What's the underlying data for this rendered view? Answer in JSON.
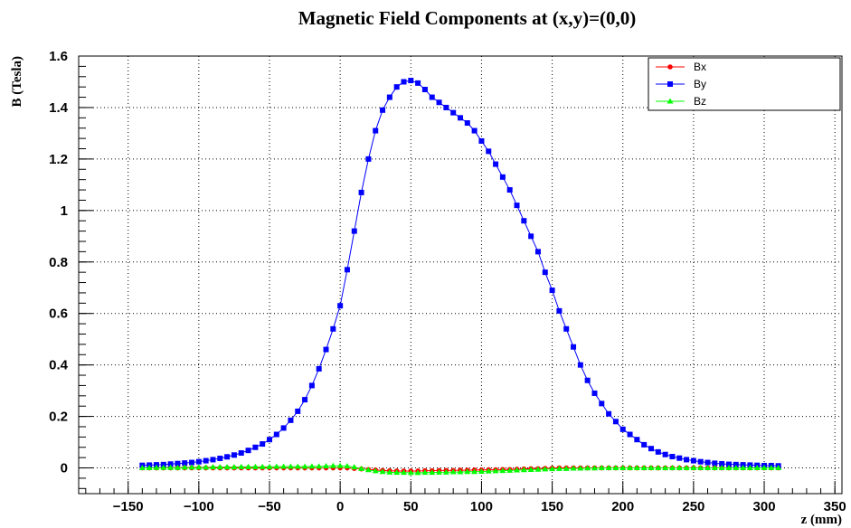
{
  "chart_data": {
    "type": "line",
    "title": "Magnetic Field Components at (x,y)=(0,0)",
    "xlabel": "z (mm)",
    "ylabel": "B (Tesla)",
    "xlim": [
      -185,
      355
    ],
    "ylim": [
      -0.1,
      1.6
    ],
    "x_ticks": [
      -150,
      -100,
      -50,
      0,
      50,
      100,
      150,
      200,
      250,
      300,
      350
    ],
    "x_tick_labels": [
      "−150",
      "−100",
      "−50",
      "0",
      "50",
      "100",
      "150",
      "200",
      "250",
      "300",
      "350"
    ],
    "y_ticks": [
      0,
      0.2,
      0.4,
      0.6,
      0.8,
      1,
      1.2,
      1.4,
      1.6
    ],
    "y_tick_labels": [
      "0",
      "0.2",
      "0.4",
      "0.6",
      "0.8",
      "1",
      "1.2",
      "1.4",
      "1.6"
    ],
    "grid": true,
    "legend_position": "top-right",
    "x": [
      -140,
      -135,
      -130,
      -125,
      -120,
      -115,
      -110,
      -105,
      -100,
      -95,
      -90,
      -85,
      -80,
      -75,
      -70,
      -65,
      -60,
      -55,
      -50,
      -45,
      -40,
      -35,
      -30,
      -25,
      -20,
      -15,
      -10,
      -5,
      0,
      5,
      10,
      15,
      20,
      25,
      30,
      35,
      40,
      45,
      50,
      55,
      60,
      65,
      70,
      75,
      80,
      85,
      90,
      95,
      100,
      105,
      110,
      115,
      120,
      125,
      130,
      135,
      140,
      145,
      150,
      155,
      160,
      165,
      170,
      175,
      180,
      185,
      190,
      195,
      200,
      205,
      210,
      215,
      220,
      225,
      230,
      235,
      240,
      245,
      250,
      255,
      260,
      265,
      270,
      275,
      280,
      285,
      290,
      295,
      300,
      305,
      310
    ],
    "series": [
      {
        "name": "Bx",
        "color": "#ff0000",
        "marker": "circle",
        "values": [
          0,
          0,
          0,
          0,
          0,
          0,
          0,
          0,
          0,
          0,
          0,
          0,
          0,
          0,
          0,
          0,
          0,
          0,
          0,
          0,
          0,
          0,
          0,
          0,
          0,
          0,
          0,
          0,
          0,
          0,
          -0.002,
          -0.004,
          -0.006,
          -0.008,
          -0.01,
          -0.011,
          -0.012,
          -0.012,
          -0.012,
          -0.012,
          -0.011,
          -0.011,
          -0.01,
          -0.01,
          -0.01,
          -0.009,
          -0.009,
          -0.008,
          -0.008,
          -0.007,
          -0.007,
          -0.006,
          -0.006,
          -0.005,
          -0.004,
          -0.003,
          -0.003,
          -0.002,
          -0.001,
          0,
          0,
          0,
          0,
          0,
          0,
          0,
          0,
          0,
          0,
          0,
          0,
          0,
          0,
          0,
          0,
          0,
          0,
          0,
          0,
          0,
          0,
          0,
          0,
          0,
          0,
          0,
          0,
          0,
          0,
          0,
          0
        ]
      },
      {
        "name": "By",
        "color": "#0000ff",
        "marker": "square",
        "values": [
          0.01,
          0.011,
          0.012,
          0.013,
          0.015,
          0.017,
          0.019,
          0.021,
          0.024,
          0.028,
          0.032,
          0.037,
          0.043,
          0.05,
          0.058,
          0.068,
          0.08,
          0.093,
          0.11,
          0.13,
          0.155,
          0.185,
          0.22,
          0.265,
          0.32,
          0.385,
          0.46,
          0.54,
          0.63,
          0.77,
          0.92,
          1.07,
          1.2,
          1.31,
          1.39,
          1.44,
          1.48,
          1.5,
          1.505,
          1.495,
          1.47,
          1.44,
          1.42,
          1.4,
          1.38,
          1.36,
          1.34,
          1.31,
          1.27,
          1.23,
          1.18,
          1.13,
          1.08,
          1.02,
          0.96,
          0.9,
          0.84,
          0.76,
          0.69,
          0.61,
          0.54,
          0.47,
          0.4,
          0.34,
          0.29,
          0.25,
          0.21,
          0.18,
          0.15,
          0.13,
          0.11,
          0.09,
          0.075,
          0.062,
          0.052,
          0.044,
          0.038,
          0.032,
          0.028,
          0.024,
          0.021,
          0.018,
          0.016,
          0.014,
          0.013,
          0.012,
          0.011,
          0.01,
          0.009,
          0.009,
          0.008
        ]
      },
      {
        "name": "Bz",
        "color": "#00ff00",
        "marker": "triangle",
        "values": [
          0,
          0,
          0.001,
          0.001,
          0.001,
          0.001,
          0.002,
          0.002,
          0.002,
          0.002,
          0.003,
          0.003,
          0.003,
          0.003,
          0.004,
          0.004,
          0.004,
          0.004,
          0.004,
          0.005,
          0.005,
          0.005,
          0.005,
          0.005,
          0.006,
          0.006,
          0.007,
          0.008,
          0.008,
          0.007,
          0.003,
          -0.003,
          -0.008,
          -0.012,
          -0.015,
          -0.017,
          -0.018,
          -0.018,
          -0.019,
          -0.019,
          -0.018,
          -0.018,
          -0.017,
          -0.017,
          -0.016,
          -0.016,
          -0.015,
          -0.015,
          -0.014,
          -0.013,
          -0.012,
          -0.011,
          -0.01,
          -0.009,
          -0.008,
          -0.007,
          -0.006,
          -0.005,
          -0.004,
          -0.003,
          -0.003,
          -0.002,
          -0.002,
          -0.001,
          -0.001,
          0,
          0,
          0,
          0,
          0,
          0,
          0,
          0,
          0,
          0,
          0,
          0,
          0,
          0,
          0,
          0,
          0,
          0,
          0,
          0,
          0,
          0,
          0,
          0,
          0,
          0
        ]
      }
    ]
  }
}
